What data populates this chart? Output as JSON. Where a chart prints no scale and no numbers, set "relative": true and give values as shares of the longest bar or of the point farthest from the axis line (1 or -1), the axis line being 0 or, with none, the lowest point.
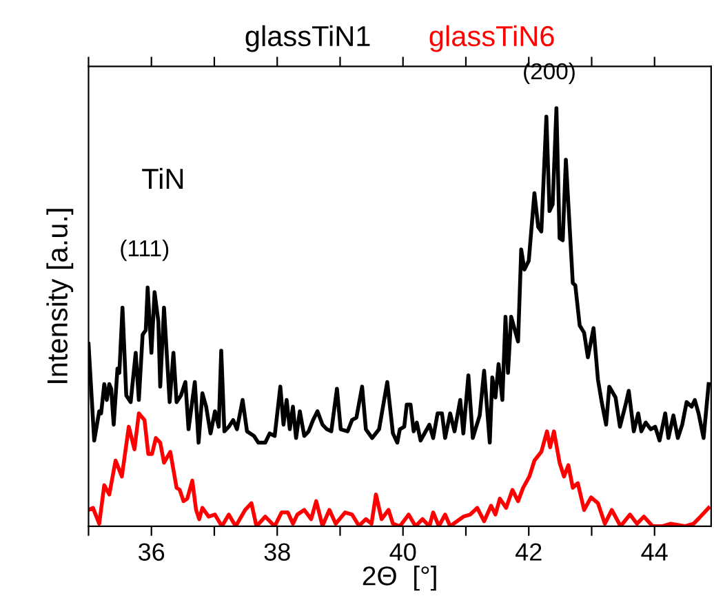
{
  "chart_data": {
    "type": "line",
    "relative": true,
    "xlabel": "2Θ  [°]",
    "ylabel": "Intensity [a.u.]",
    "xlim": [
      35,
      44.9
    ],
    "xticks": [
      {
        "value": 35,
        "label": null
      },
      36,
      {
        "value": 37,
        "label": null
      },
      38,
      {
        "value": 39,
        "label": null
      },
      40,
      {
        "value": 41,
        "label": null
      },
      42,
      {
        "value": 43,
        "label": null
      },
      44
    ],
    "tick_labels": "x",
    "grid": false,
    "legend": "top",
    "marker": "none",
    "line_style": "solid",
    "annotations": [
      "TiN",
      "(111)",
      "(200)"
    ],
    "series": [
      {
        "name": "glassTiN1",
        "color": "#000000",
        "x": [
          35.0,
          35.09,
          35.17,
          35.2,
          35.25,
          35.29,
          35.33,
          35.36,
          35.4,
          35.46,
          35.49,
          35.54,
          35.6,
          35.67,
          35.75,
          35.8,
          35.86,
          35.91,
          35.94,
          36.0,
          36.05,
          36.11,
          36.14,
          36.2,
          36.29,
          36.35,
          36.4,
          36.47,
          36.54,
          36.59,
          36.69,
          36.75,
          36.81,
          36.87,
          36.94,
          37.01,
          37.07,
          37.11,
          37.16,
          37.23,
          37.3,
          37.36,
          37.45,
          37.52,
          37.63,
          37.7,
          37.81,
          37.88,
          37.96,
          38.05,
          38.1,
          38.15,
          38.2,
          38.25,
          38.3,
          38.36,
          38.43,
          38.5,
          38.57,
          38.64,
          38.72,
          38.79,
          38.86,
          38.95,
          39.01,
          39.12,
          39.19,
          39.26,
          39.35,
          39.41,
          39.51,
          39.62,
          39.75,
          39.84,
          39.91,
          39.95,
          40.02,
          40.06,
          40.12,
          40.17,
          40.22,
          40.28,
          40.42,
          40.48,
          40.55,
          40.62,
          40.67,
          40.75,
          40.82,
          40.91,
          40.96,
          41.04,
          41.11,
          41.22,
          41.29,
          41.38,
          41.42,
          41.47,
          41.52,
          41.58,
          41.63,
          41.67,
          41.72,
          41.83,
          41.88,
          41.93,
          42.0,
          42.09,
          42.15,
          42.2,
          42.28,
          42.33,
          42.38,
          42.44,
          42.49,
          42.54,
          42.59,
          42.7,
          42.74,
          42.81,
          42.88,
          42.94,
          43.03,
          43.1,
          43.16,
          43.23,
          43.28,
          43.38,
          43.45,
          43.54,
          43.59,
          43.67,
          43.74,
          43.79,
          43.86,
          43.94,
          44.01,
          44.08,
          44.17,
          44.22,
          44.3,
          44.37,
          44.44,
          44.51,
          44.59,
          44.64,
          44.7,
          44.78,
          44.86
        ],
        "values": [
          0.436,
          0.205,
          0.275,
          0.27,
          0.34,
          0.302,
          0.34,
          0.329,
          0.243,
          0.377,
          0.367,
          0.523,
          0.313,
          0.297,
          0.415,
          0.302,
          0.458,
          0.469,
          0.571,
          0.415,
          0.56,
          0.49,
          0.334,
          0.523,
          0.297,
          0.415,
          0.297,
          0.313,
          0.345,
          0.232,
          0.345,
          0.2,
          0.318,
          0.286,
          0.222,
          0.275,
          0.238,
          0.42,
          0.227,
          0.238,
          0.254,
          0.232,
          0.302,
          0.227,
          0.216,
          0.2,
          0.2,
          0.222,
          0.216,
          0.334,
          0.243,
          0.302,
          0.232,
          0.286,
          0.211,
          0.275,
          0.216,
          0.227,
          0.254,
          0.275,
          0.243,
          0.232,
          0.227,
          0.329,
          0.232,
          0.227,
          0.254,
          0.26,
          0.334,
          0.232,
          0.211,
          0.232,
          0.345,
          0.222,
          0.2,
          0.232,
          0.238,
          0.291,
          0.291,
          0.227,
          0.248,
          0.205,
          0.243,
          0.211,
          0.27,
          0.27,
          0.211,
          0.27,
          0.227,
          0.302,
          0.222,
          0.361,
          0.211,
          0.265,
          0.372,
          0.2,
          0.356,
          0.308,
          0.388,
          0.302,
          0.501,
          0.367,
          0.501,
          0.442,
          0.662,
          0.614,
          0.635,
          0.797,
          0.716,
          0.705,
          0.98,
          0.754,
          0.77,
          1.0,
          0.689,
          0.684,
          0.877,
          0.582,
          0.576,
          0.48,
          0.463,
          0.404,
          0.474,
          0.351,
          0.297,
          0.243,
          0.334,
          0.308,
          0.238,
          0.291,
          0.324,
          0.227,
          0.27,
          0.227,
          0.248,
          0.232,
          0.238,
          0.205,
          0.27,
          0.211,
          0.265,
          0.211,
          0.243,
          0.297,
          0.286,
          0.302,
          0.27,
          0.211,
          0.34
        ]
      },
      {
        "name": "glassTiN6",
        "color": "#ff0000",
        "x": [
          35.0,
          35.07,
          35.17,
          35.25,
          35.33,
          35.43,
          35.53,
          35.64,
          35.73,
          35.8,
          35.89,
          35.95,
          36.01,
          36.07,
          36.14,
          36.2,
          36.3,
          36.4,
          36.45,
          36.51,
          36.57,
          36.65,
          36.71,
          36.76,
          36.81,
          36.91,
          37.01,
          37.12,
          37.23,
          37.34,
          37.49,
          37.59,
          37.67,
          37.81,
          37.96,
          38.07,
          38.17,
          38.25,
          38.32,
          38.43,
          38.54,
          38.62,
          38.72,
          38.83,
          38.93,
          39.08,
          39.19,
          39.3,
          39.41,
          39.5,
          39.57,
          39.66,
          39.77,
          39.84,
          39.95,
          40.09,
          40.2,
          40.31,
          40.42,
          40.48,
          40.57,
          40.67,
          40.75,
          40.86,
          40.96,
          41.07,
          41.18,
          41.29,
          41.4,
          41.47,
          41.54,
          41.64,
          41.74,
          41.83,
          41.91,
          42.01,
          42.09,
          42.2,
          42.29,
          42.34,
          42.4,
          42.49,
          42.56,
          42.63,
          42.7,
          42.78,
          42.88,
          42.99,
          43.1,
          43.21,
          43.32,
          43.46,
          43.61,
          43.72,
          43.83,
          43.97,
          44.12,
          44.26,
          44.48,
          44.62,
          44.73,
          44.86
        ],
        "values": [
          0.039,
          0.044,
          0.006,
          0.098,
          0.076,
          0.157,
          0.119,
          0.238,
          0.184,
          0.27,
          0.254,
          0.173,
          0.173,
          0.211,
          0.2,
          0.152,
          0.178,
          0.092,
          0.087,
          0.06,
          0.066,
          0.109,
          0.039,
          0.017,
          0.044,
          0.023,
          0.028,
          0.0,
          0.028,
          0.0,
          0.039,
          0.055,
          0.0,
          0.023,
          0.0,
          0.033,
          0.033,
          0.006,
          0.028,
          0.039,
          0.017,
          0.06,
          0.001,
          0.039,
          0.006,
          0.033,
          0.028,
          0.001,
          0.017,
          0.006,
          0.076,
          0.017,
          0.039,
          0.006,
          0.0,
          0.028,
          0.0,
          0.017,
          0.0,
          0.033,
          0.0,
          0.028,
          0.0,
          0.012,
          0.023,
          0.028,
          0.044,
          0.012,
          0.049,
          0.028,
          0.066,
          0.044,
          0.087,
          0.06,
          0.092,
          0.119,
          0.157,
          0.178,
          0.227,
          0.189,
          0.227,
          0.152,
          0.119,
          0.146,
          0.092,
          0.103,
          0.039,
          0.069,
          0.055,
          0.006,
          0.039,
          0.0,
          0.028,
          0.006,
          0.023,
          0.0,
          0.0,
          0.006,
          0.0,
          0.006,
          0.023,
          0.044
        ]
      }
    ]
  }
}
